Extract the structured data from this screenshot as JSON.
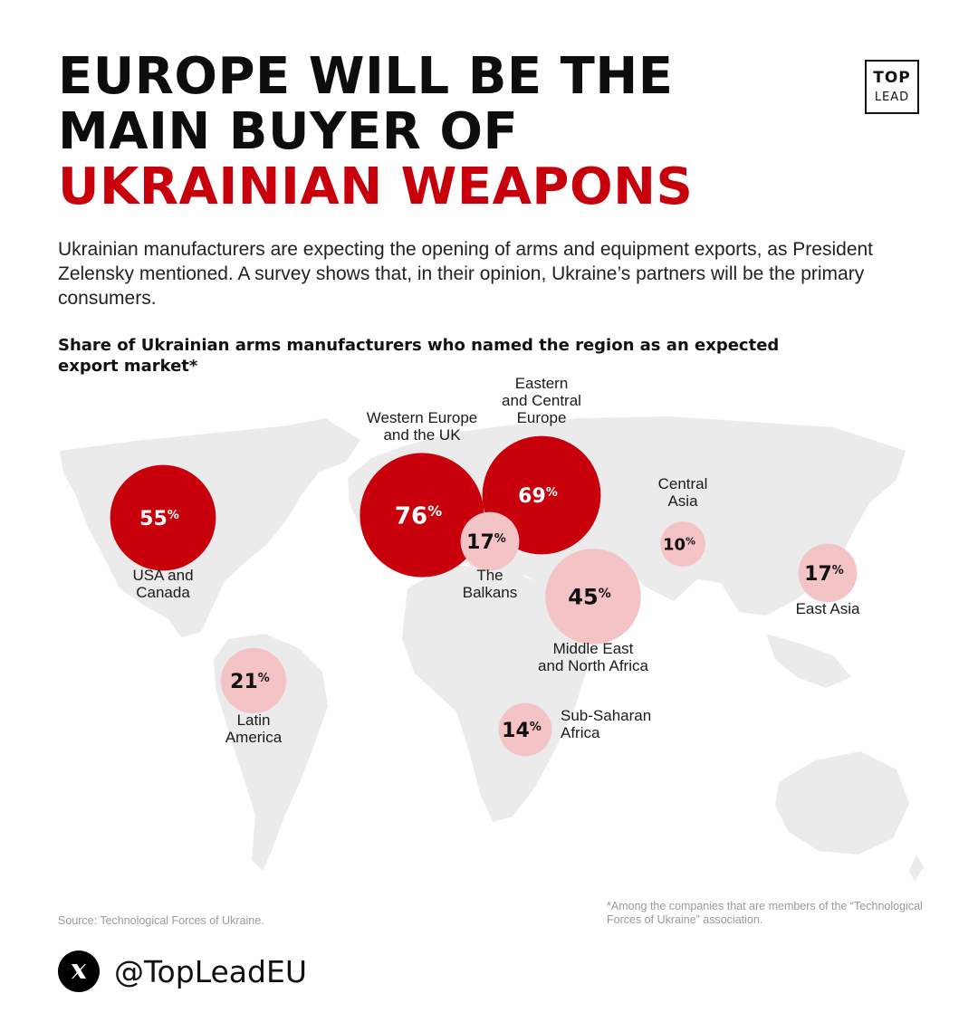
{
  "headline": {
    "line1": "EUROPE WILL BE THE",
    "line2": "MAIN BUYER OF",
    "line3": "UKRAINIAN WEAPONS"
  },
  "logo": {
    "top": "TOP",
    "bottom": "LEAD"
  },
  "intro": "Ukrainian manufacturers are expecting the opening of arms and equipment exports, as President Zelensky mentioned. A survey shows that, in their opinion, Ukraine’s partners will be the primary consumers.",
  "colors": {
    "accent": "#c8000b",
    "bubble_light": "#f4c3c6",
    "map": "#ebebeb",
    "note_text": "#9a9a9a"
  },
  "chart_data": {
    "type": "bubble-map",
    "title": "Share of Ukrainian arms manufacturers who named the region as an expected export market*",
    "unit": "%",
    "series": [
      {
        "region": "USA and Canada",
        "label_lines": [
          "USA and",
          "Canada"
        ],
        "value": 55,
        "highlight": true
      },
      {
        "region": "Western Europe and the UK",
        "label_lines": [
          "Western Europe",
          "and the UK"
        ],
        "value": 76,
        "highlight": true
      },
      {
        "region": "Eastern and Central Europe",
        "label_lines": [
          "Eastern",
          "and Central",
          "Europe"
        ],
        "value": 69,
        "highlight": true
      },
      {
        "region": "The Balkans",
        "label_lines": [
          "The",
          "Balkans"
        ],
        "value": 17,
        "highlight": false
      },
      {
        "region": "Central Asia",
        "label_lines": [
          "Central",
          "Asia"
        ],
        "value": 10,
        "highlight": false
      },
      {
        "region": "Middle East and North Africa",
        "label_lines": [
          "Middle East",
          "and North Africa"
        ],
        "value": 45,
        "highlight": false
      },
      {
        "region": "East Asia",
        "label_lines": [
          "East Asia"
        ],
        "value": 17,
        "highlight": false
      },
      {
        "region": "Latin America",
        "label_lines": [
          "Latin",
          "America"
        ],
        "value": 21,
        "highlight": false
      },
      {
        "region": "Sub-Saharan Africa",
        "label_lines": [
          "Sub-Saharan",
          "Africa"
        ],
        "value": 14,
        "highlight": false
      }
    ]
  },
  "source": "Source: Technological Forces of Ukraine.",
  "footnote": "*Among the companies that are members of the “Technological Forces of Ukraine” association.",
  "social": {
    "handle": "@TopLeadEU",
    "icon": "x-logo-icon"
  }
}
